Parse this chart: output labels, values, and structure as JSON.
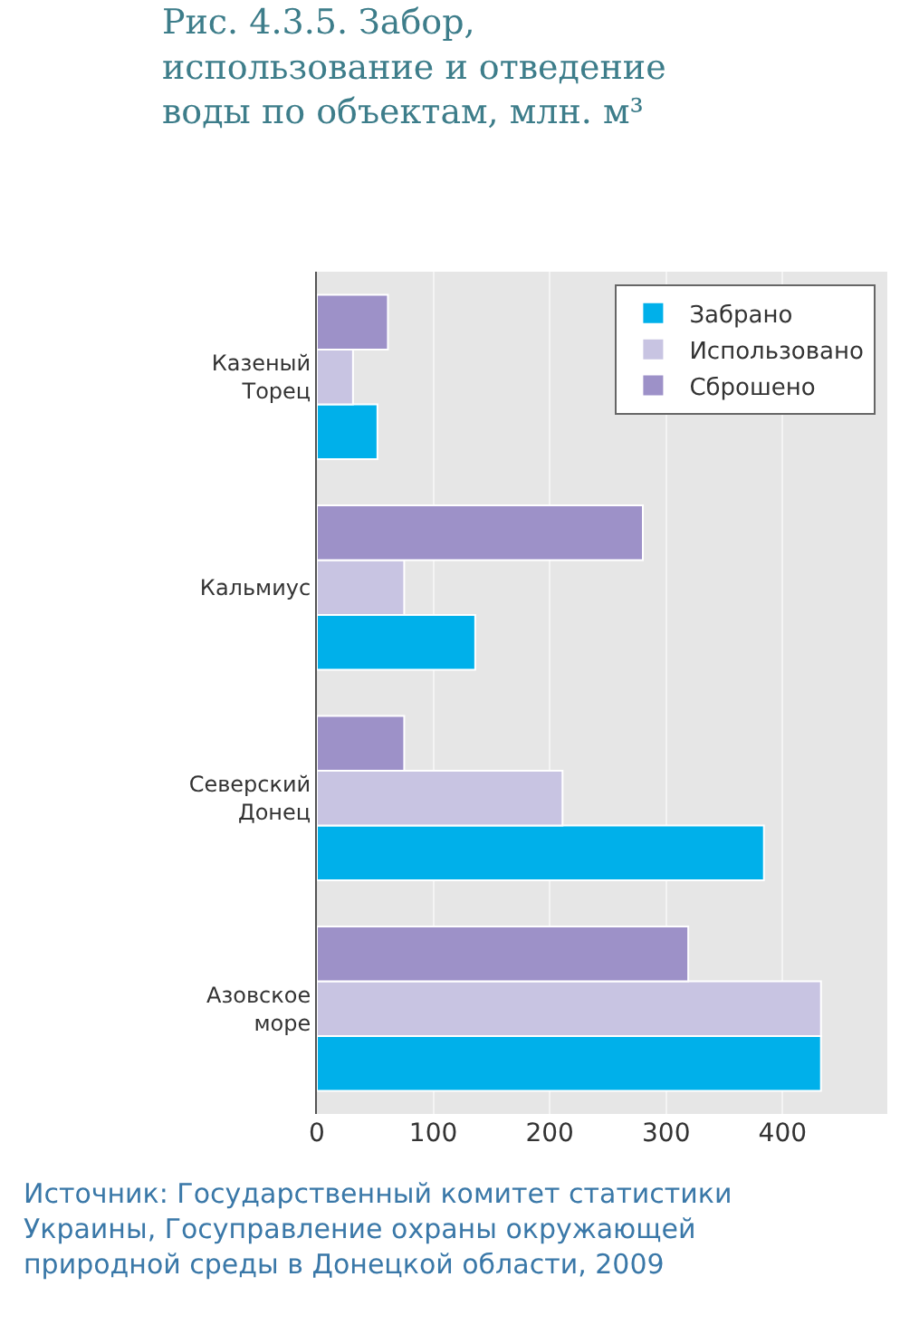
{
  "chart_data": {
    "type": "bar",
    "orientation": "horizontal",
    "title": "Рис. 4.3.5. Забор, использование и отведение воды по объектам, млн. м³",
    "categories": [
      "Казеный Торец",
      "Кальмиус",
      "Северский Донец",
      "Азовское море"
    ],
    "series": [
      {
        "name": "Забрано",
        "color": "#00b0ea",
        "values": [
          52,
          136,
          384,
          433
        ]
      },
      {
        "name": "Использовано",
        "color": "#c8c4e2",
        "values": [
          31,
          75,
          211,
          433
        ]
      },
      {
        "name": "Сброшено",
        "color": "#9d91c8",
        "values": [
          61,
          280,
          75,
          319
        ]
      }
    ],
    "xlim": [
      0,
      490
    ],
    "xticks": [
      0,
      100,
      200,
      300,
      400
    ],
    "grid": "x",
    "legend": "top right",
    "annotations": [
      "Источник: Государственный комитет статистики Украины, Госуправление охраны окружающей природной среды в Донецкой области, 2009"
    ]
  }
}
